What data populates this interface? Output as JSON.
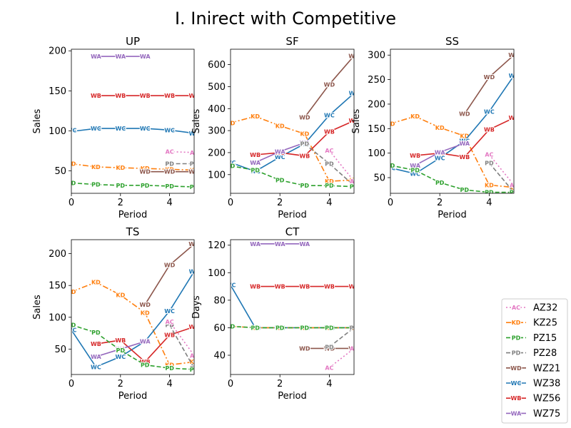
{
  "figure_title": "I. Inirect with Competitive",
  "colors": {
    "AZ32": "#e377c2",
    "KZ25": "#ff7f0e",
    "PZ15": "#2ca02c",
    "PZ28": "#7f7f7f",
    "WZ21": "#8c564b",
    "WZ38": "#1f77b4",
    "WZ56": "#d62728",
    "WZ75": "#9467bd"
  },
  "legend": {
    "placement": "lower-right",
    "entries": [
      {
        "series": "AZ32",
        "label": "AZ32",
        "marker": "AC",
        "dash": "dotted"
      },
      {
        "series": "KZ25",
        "label": "KZ25",
        "marker": "KD",
        "dash": "dashdot"
      },
      {
        "series": "PZ15",
        "label": "PZ15",
        "marker": "PD",
        "dash": "dashed"
      },
      {
        "series": "PZ28",
        "label": "PZ28",
        "marker": "PD",
        "dash": "dashed"
      },
      {
        "series": "WZ21",
        "label": "WZ21",
        "marker": "WD",
        "dash": "solid"
      },
      {
        "series": "WZ38",
        "label": "WZ38",
        "marker": "WC",
        "dash": "solid"
      },
      {
        "series": "WZ56",
        "label": "WZ56",
        "marker": "WB",
        "dash": "solid"
      },
      {
        "series": "WZ75",
        "label": "WZ75",
        "marker": "WA",
        "dash": "solid"
      }
    ]
  },
  "chart_data": [
    {
      "type": "line",
      "title": "UP",
      "xlabel": "Period",
      "ylabel": "Sales",
      "xlim": [
        0,
        5
      ],
      "ylim": [
        22,
        202
      ],
      "xticks": [
        "0",
        "2",
        "4"
      ],
      "xtick_values": [
        0,
        2,
        4
      ],
      "yticks": [
        "50",
        "100",
        "150",
        "200"
      ],
      "ytick_values": [
        50,
        100,
        150,
        200
      ],
      "series": [
        {
          "key": "WZ75",
          "marker": "WA",
          "dash": "solid",
          "x": [
            1,
            2,
            3
          ],
          "y": [
            193,
            193,
            193
          ]
        },
        {
          "key": "WZ56",
          "marker": "WB",
          "dash": "solid",
          "x": [
            1,
            2,
            3,
            4,
            5
          ],
          "y": [
            144,
            144,
            144,
            144,
            144
          ]
        },
        {
          "key": "WZ38",
          "marker": "WC",
          "dash": "solid",
          "x": [
            0,
            0.2,
            1,
            2,
            3,
            4,
            5
          ],
          "y": [
            101,
            100,
            103,
            103,
            103,
            101,
            97
          ]
        },
        {
          "key": "KZ25",
          "marker": "KD",
          "dash": "dashdot",
          "x": [
            0,
            1,
            2,
            3,
            4,
            5
          ],
          "y": [
            59,
            55,
            54,
            53,
            52,
            51
          ]
        },
        {
          "key": "WZ21",
          "marker": "WD",
          "dash": "solid",
          "x": [
            3,
            4,
            5
          ],
          "y": [
            49,
            49,
            49
          ]
        },
        {
          "key": "PZ28",
          "marker": "PD",
          "dash": "dashed",
          "x": [
            4,
            5
          ],
          "y": [
            59,
            59
          ]
        },
        {
          "key": "AZ32",
          "marker": "AC",
          "dash": "dotted",
          "x": [
            4,
            5
          ],
          "y": [
            74,
            73
          ]
        },
        {
          "key": "PZ15",
          "marker": "PD",
          "dash": "dashed",
          "x": [
            0,
            1,
            2,
            3,
            4,
            5
          ],
          "y": [
            35,
            33,
            32,
            32,
            31,
            30
          ]
        }
      ]
    },
    {
      "type": "line",
      "title": "SF",
      "xlabel": "Period",
      "ylabel": "Sales",
      "xlim": [
        0,
        5
      ],
      "ylim": [
        15,
        670
      ],
      "xticks": [
        "0",
        "2",
        "4"
      ],
      "xtick_values": [
        0,
        2,
        4
      ],
      "yticks": [
        "100",
        "200",
        "300",
        "400",
        "500",
        "600"
      ],
      "ytick_values": [
        100,
        200,
        300,
        400,
        500,
        600
      ],
      "series": [
        {
          "key": "KZ25",
          "marker": "KD",
          "dash": "dashdot",
          "x": [
            0,
            1,
            2,
            3,
            4,
            5
          ],
          "y": [
            335,
            365,
            322,
            285,
            70,
            75
          ]
        },
        {
          "key": "WZ38",
          "marker": "WC",
          "dash": "solid",
          "x": [
            0,
            1,
            2,
            3,
            4,
            5
          ],
          "y": [
            155,
            115,
            180,
            240,
            370,
            470
          ]
        },
        {
          "key": "WZ56",
          "marker": "WB",
          "dash": "solid",
          "x": [
            1,
            2,
            3,
            4,
            5
          ],
          "y": [
            190,
            200,
            185,
            295,
            345
          ]
        },
        {
          "key": "WZ75",
          "marker": "WA",
          "dash": "solid",
          "x": [
            1,
            2,
            3
          ],
          "y": [
            155,
            205,
            245
          ]
        },
        {
          "key": "WZ21",
          "marker": "WD",
          "dash": "solid",
          "x": [
            3,
            4,
            5
          ],
          "y": [
            360,
            510,
            640
          ]
        },
        {
          "key": "PZ28",
          "marker": "PD",
          "dash": "dashed",
          "x": [
            3,
            4,
            5
          ],
          "y": [
            240,
            150,
            50
          ]
        },
        {
          "key": "AZ32",
          "marker": "AC",
          "dash": "dotted",
          "x": [
            4,
            5
          ],
          "y": [
            210,
            70
          ]
        },
        {
          "key": "PZ15",
          "marker": "PD",
          "dash": "dashed",
          "x": [
            0,
            1,
            2,
            3,
            4,
            5
          ],
          "y": [
            140,
            120,
            75,
            50,
            50,
            45
          ]
        }
      ]
    },
    {
      "type": "line",
      "title": "SS",
      "xlabel": "Period",
      "ylabel": "Sales",
      "xlim": [
        0,
        5
      ],
      "ylim": [
        18,
        312
      ],
      "xticks": [
        "0",
        "2",
        "4"
      ],
      "xtick_values": [
        0,
        2,
        4
      ],
      "yticks": [
        "50",
        "100",
        "150",
        "200",
        "250",
        "300"
      ],
      "ytick_values": [
        50,
        100,
        150,
        200,
        250,
        300
      ],
      "series": [
        {
          "key": "KZ25",
          "marker": "KD",
          "dash": "dashdot",
          "x": [
            0,
            1,
            2,
            3,
            4,
            5
          ],
          "y": [
            160,
            175,
            152,
            135,
            35,
            30
          ]
        },
        {
          "key": "WZ38",
          "marker": "WC",
          "dash": "solid",
          "x": [
            0,
            1,
            2,
            3,
            4,
            5
          ],
          "y": [
            70,
            58,
            90,
            125,
            185,
            258
          ]
        },
        {
          "key": "WZ56",
          "marker": "WB",
          "dash": "solid",
          "x": [
            1,
            2,
            3,
            4,
            5
          ],
          "y": [
            95,
            100,
            92,
            148,
            172
          ]
        },
        {
          "key": "WZ75",
          "marker": "WA",
          "dash": "solid",
          "x": [
            1,
            2,
            3
          ],
          "y": [
            75,
            102,
            120
          ]
        },
        {
          "key": "WZ21",
          "marker": "WD",
          "dash": "solid",
          "x": [
            3,
            4,
            5
          ],
          "y": [
            180,
            255,
            300
          ]
        },
        {
          "key": "PZ28",
          "marker": "PD",
          "dash": "dashed",
          "x": [
            4,
            5
          ],
          "y": [
            80,
            20
          ]
        },
        {
          "key": "AZ32",
          "marker": "AC",
          "dash": "dotted",
          "x": [
            4,
            5
          ],
          "y": [
            97,
            35
          ]
        },
        {
          "key": "PZ15",
          "marker": "PD",
          "dash": "dashed",
          "x": [
            0,
            1,
            2,
            3,
            4,
            5
          ],
          "y": [
            75,
            65,
            40,
            25,
            20,
            20
          ]
        }
      ]
    },
    {
      "type": "line",
      "title": "TS",
      "xlabel": "Period",
      "ylabel": "Sales",
      "xlim": [
        0,
        5
      ],
      "ylim": [
        10,
        222
      ],
      "xticks": [
        "0",
        "2",
        "4"
      ],
      "xtick_values": [
        0,
        2,
        4
      ],
      "yticks": [
        "50",
        "100",
        "150",
        "200"
      ],
      "ytick_values": [
        50,
        100,
        150,
        200
      ],
      "series": [
        {
          "key": "KZ25",
          "marker": "KD",
          "dash": "dashdot",
          "x": [
            0,
            1,
            2,
            3,
            4,
            5
          ],
          "y": [
            140,
            155,
            135,
            107,
            25,
            30
          ]
        },
        {
          "key": "WZ38",
          "marker": "WC",
          "dash": "solid",
          "x": [
            0,
            1,
            2,
            3,
            4,
            5
          ],
          "y": [
            80,
            22,
            38,
            62,
            110,
            172
          ]
        },
        {
          "key": "WZ56",
          "marker": "WB",
          "dash": "solid",
          "x": [
            1,
            2,
            3,
            4,
            5
          ],
          "y": [
            58,
            64,
            30,
            72,
            85
          ]
        },
        {
          "key": "WZ75",
          "marker": "WA",
          "dash": "solid",
          "x": [
            1,
            2,
            3
          ],
          "y": [
            38,
            50,
            62
          ]
        },
        {
          "key": "WZ21",
          "marker": "WD",
          "dash": "solid",
          "x": [
            3,
            4,
            5
          ],
          "y": [
            120,
            182,
            215
          ]
        },
        {
          "key": "PZ28",
          "marker": "PD",
          "dash": "dashed",
          "x": [
            4,
            5
          ],
          "y": [
            88,
            20
          ]
        },
        {
          "key": "AZ32",
          "marker": "AC",
          "dash": "dotted",
          "x": [
            4,
            5
          ],
          "y": [
            93,
            40
          ]
        },
        {
          "key": "PZ15",
          "marker": "PD",
          "dash": "dashed",
          "x": [
            0,
            1,
            2,
            3,
            4,
            5
          ],
          "y": [
            88,
            76,
            48,
            25,
            20,
            18
          ]
        }
      ]
    },
    {
      "type": "line",
      "title": "CT",
      "xlabel": "Period",
      "ylabel": "Days",
      "xlim": [
        0,
        5
      ],
      "ylim": [
        26,
        124
      ],
      "xticks": [
        "0",
        "2",
        "4"
      ],
      "xtick_values": [
        0,
        2,
        4
      ],
      "yticks": [
        "40",
        "60",
        "80",
        "100",
        "120"
      ],
      "ytick_values": [
        40,
        60,
        80,
        100,
        120
      ],
      "series": [
        {
          "key": "WZ75",
          "marker": "WA",
          "dash": "solid",
          "x": [
            1,
            2,
            3
          ],
          "y": [
            121,
            121,
            121
          ]
        },
        {
          "key": "WZ56",
          "marker": "WB",
          "dash": "solid",
          "x": [
            1,
            2,
            3,
            4,
            5
          ],
          "y": [
            90,
            90,
            90,
            90,
            90
          ]
        },
        {
          "key": "WZ38",
          "marker": "WC",
          "dash": "solid",
          "x": [
            0,
            1,
            2,
            3,
            4,
            5
          ],
          "y": [
            91,
            60,
            60,
            60,
            60,
            60
          ]
        },
        {
          "key": "KZ25",
          "marker": "KD",
          "dash": "dashdot",
          "x": [
            0,
            1,
            2,
            3,
            4,
            5
          ],
          "y": [
            61,
            60,
            60,
            60,
            60,
            60
          ]
        },
        {
          "key": "PZ15",
          "marker": "PD",
          "dash": "dashed",
          "x": [
            0,
            1,
            2,
            3,
            4,
            5
          ],
          "y": [
            61,
            60,
            60,
            60,
            60,
            60
          ]
        },
        {
          "key": "WZ21",
          "marker": "WD",
          "dash": "solid",
          "x": [
            3,
            4,
            5
          ],
          "y": [
            45,
            45,
            45
          ]
        },
        {
          "key": "PZ28",
          "marker": "PD",
          "dash": "dashed",
          "x": [
            4,
            5
          ],
          "y": [
            46,
            60
          ]
        },
        {
          "key": "AZ32",
          "marker": "AC",
          "dash": "dotted",
          "x": [
            4,
            5
          ],
          "y": [
            31,
            45
          ]
        }
      ]
    }
  ]
}
